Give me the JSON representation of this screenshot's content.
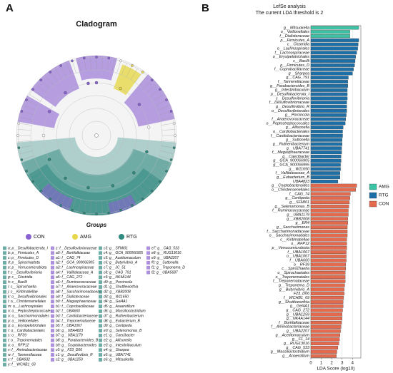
{
  "panel_a": {
    "label": "A",
    "title": "Cladogram",
    "groups_title": "Groups",
    "groups": [
      {
        "name": "CON",
        "color": "#8a63d2"
      },
      {
        "name": "AMG",
        "color": "#e6d84a"
      },
      {
        "name": "RTG",
        "color": "#2f8a80"
      }
    ],
    "taxa": [
      [
        "a: p__Desulfobacterota_I",
        "b: p__Firmicutes_A",
        "c: p__Firmicutes_D",
        "d: p__Spirochaetota",
        "e: p__Verrucomicrobiota",
        "f: c__Desulfovibrionia",
        "g: c__Clostridia",
        "h: c__Bacilli",
        "i: c__Spirochaetia",
        "j: c__Kiritimatiellae",
        "k: o__Desulfovibrionales",
        "l: o__Christensenellales",
        "m: o__Lachnospirales",
        "n: o__Peptostreptococcales",
        "o: o__Saccharimonadales",
        "p: o__Veillonellales",
        "q: o__Erysipelotrichales",
        "r: o__Cardiobacteriales",
        "s: o__RF39",
        "t: o__Treponematales",
        "u: o__RFP12",
        "v: f__Aminobacteriaceae",
        "w: f__Tannerellaceae",
        "x: f__UBA932",
        "y: f__WCHB1_69"
      ],
      [
        "z: f__Desulfovibrionaceae",
        "a0: f__Borkfalkiaceae",
        "a1: f__CAG_74",
        "a2: f__GCA_900066905",
        "a3: f__Lachnospiraceae",
        "a4: f__Vallitaleaceae_A",
        "a5: f__CAG_272",
        "a6: f__Ruminococcaceae",
        "a7: f__Anaerovoracaceae",
        "a8: f__Saccharimonadaceae",
        "a9: f__Dialisteraceae",
        "b0: f__Megasphaeraceae",
        "b1: f__Coprobacillaceae",
        "b2: f__UBA660",
        "b3: f__Cardiobacteriaceae",
        "b4: f__Treponemataceae",
        "b5: f__UBA1067",
        "b6: g__UBA4823",
        "b7: g__UBA1179",
        "b8: g__Parabacteroides_B",
        "b9: g__Cryptobacteroides",
        "c0: g__F23_D06",
        "c1: g__Desulfovibrio_R",
        "c2: g__UBA1259"
      ],
      [
        "c3: g__SFMI01",
        "c4: g__GCA_900066905",
        "c5: g__Acetitomaculum",
        "c6: g__Butyrivibrio_A",
        "c7: g__JC_51",
        "c8: g__CAG_791",
        "c9: g__NK4A144",
        "d0: g__Porcincola",
        "d1: g__Shuttleworthia",
        "d2: g__XBB2008",
        "d3: g__W11650",
        "d4: g__Gel4A1",
        "d5: g__Anaerofilum",
        "d6: g__Massilioclostridium",
        "d7: g__Ruthenibacterium",
        "d8: g__Eubacterium_B",
        "d9: g__Centipeda",
        "e0: g__Selenomonas_B",
        "e1: g__Caecibacter",
        "e2: g__Allisonella",
        "e3: g__Intestinibaculum",
        "e4: g__Sharpea",
        "e5: g__UBA7741",
        "e6: g__Mitsuokella"
      ],
      [
        "e7: g__CAG_533",
        "e8: g__RUG13016",
        "e9: g__UBA2207",
        "f0: g__Suttonella",
        "f1: g__Treponema_D",
        "f2: g__UBA5687"
      ]
    ]
  },
  "chart_data": {
    "type": "barh",
    "panel_label": "B",
    "title": "LefSe analysis",
    "subtitle": "The current LDA threshold is 2",
    "x_label": "LDA Score (log10)",
    "xlim": [
      0,
      4.8
    ],
    "xticks": [
      0,
      1,
      2,
      3,
      4
    ],
    "grid": true,
    "legend": "right",
    "series": [
      {
        "name": "AMG",
        "color": "#3cc3a6",
        "categories": [
          "g__Mitsuokella",
          "o__Veillonellales",
          "f__Dialisteraceae"
        ],
        "values": [
          4.6,
          3.75,
          3.75
        ]
      },
      {
        "name": "RTG",
        "color": "#1d6fa5",
        "categories": [
          "p__Firmicutes_A",
          "c__Clostridia",
          "o__Lachnospirales",
          "f__Lachnospiraceae",
          "o__Erysipelotrichales",
          "c__Bacilli",
          "p__Firmicutes_D",
          "f__Coprobacillaceae",
          "g__Sharpea",
          "g__CAG_791",
          "f__Tannerellaceae",
          "g__Parabacteroides_B",
          "g__Intestinibaculum",
          "p__Desulfobacterota_I",
          "c__Desulfovibrionia",
          "f__Desulfovibrionaceae",
          "g__Desulfovibrio_R",
          "o__Desulfovibrionales",
          "g__Porcincola",
          "f__Anaerovoracaceae",
          "o__Peptostreptococcales",
          "g__Allisonella",
          "o__Cardiobacteriales",
          "f__Cardiobacteriaceae",
          "g__Suttonella",
          "g__Ruthenibacterium",
          "g__UBA7741",
          "f__Megasphaeraceae",
          "g__Caecibacter",
          "g__GCA_900066905",
          "g__GCA_900066995",
          "g__W11650",
          "f__Vallitaleaceae_A",
          "g__Eubacterium_B",
          "UBA4823"
        ],
        "values": [
          4.6,
          4.55,
          4.5,
          4.4,
          4.3,
          4.25,
          4.2,
          4.1,
          4.0,
          3.6,
          3.55,
          3.55,
          3.5,
          3.5,
          3.5,
          3.45,
          3.45,
          3.45,
          3.4,
          3.35,
          3.3,
          3.1,
          3.05,
          3.05,
          3.0,
          3.0,
          2.95,
          2.95,
          2.9,
          2.9,
          2.85,
          2.85,
          2.8,
          2.8,
          2.6
        ]
      },
      {
        "name": "CON",
        "color": "#e46a4e",
        "categories": [
          "g__Cryptobacteroides",
          "o__Christensenellales",
          "f__CAG_74",
          "g__Centipeda",
          "g__SFMI01",
          "g__Selenomonas_B",
          "f__Ruminococcaceae",
          "g__UBA1179",
          "g__XBB2008",
          "g__ER4",
          "g__Saccharimonas",
          "f__Saccharimonadaceae",
          "o__Saccharimonadales",
          "c__Kiritimatiellae",
          "o__RFP12",
          "p__Verrucomicrobiota",
          "f__UBA1067",
          "o__UBA1067",
          "f__UBA660",
          "o__RF39",
          "c__Spirochaetia",
          "o__Spirochaetales",
          "o__Treponematales",
          "f__Treponemataceae",
          "g__Treponema_D",
          "g__Butyrivibrio_A",
          "F23_D06",
          "f__WCHB1_69",
          "g__Shuttleworthia",
          "g__Gel4A1",
          "g__CAG_272",
          "g__UBA1259",
          "g__NK4A144",
          "f__Borkfalkiaceae",
          "f__Aminobacteriaceae",
          "g__UBA2207",
          "g__Acetitomaculum",
          "g__F1_14",
          "g__RUG13016",
          "g__CAG_533",
          "g__Massilioclostridium",
          "g__Anaerofilum"
        ],
        "values": [
          4.4,
          4.3,
          3.8,
          3.75,
          3.7,
          3.65,
          3.6,
          3.6,
          3.55,
          3.55,
          3.5,
          3.5,
          3.5,
          3.45,
          3.45,
          3.45,
          3.4,
          3.4,
          3.4,
          3.35,
          3.35,
          3.3,
          3.3,
          3.3,
          3.25,
          3.2,
          3.2,
          3.15,
          3.1,
          3.1,
          3.05,
          3.0,
          3.0,
          2.95,
          2.9,
          2.85,
          2.8,
          2.75,
          2.7,
          2.6,
          2.5,
          2.45
        ]
      }
    ]
  }
}
